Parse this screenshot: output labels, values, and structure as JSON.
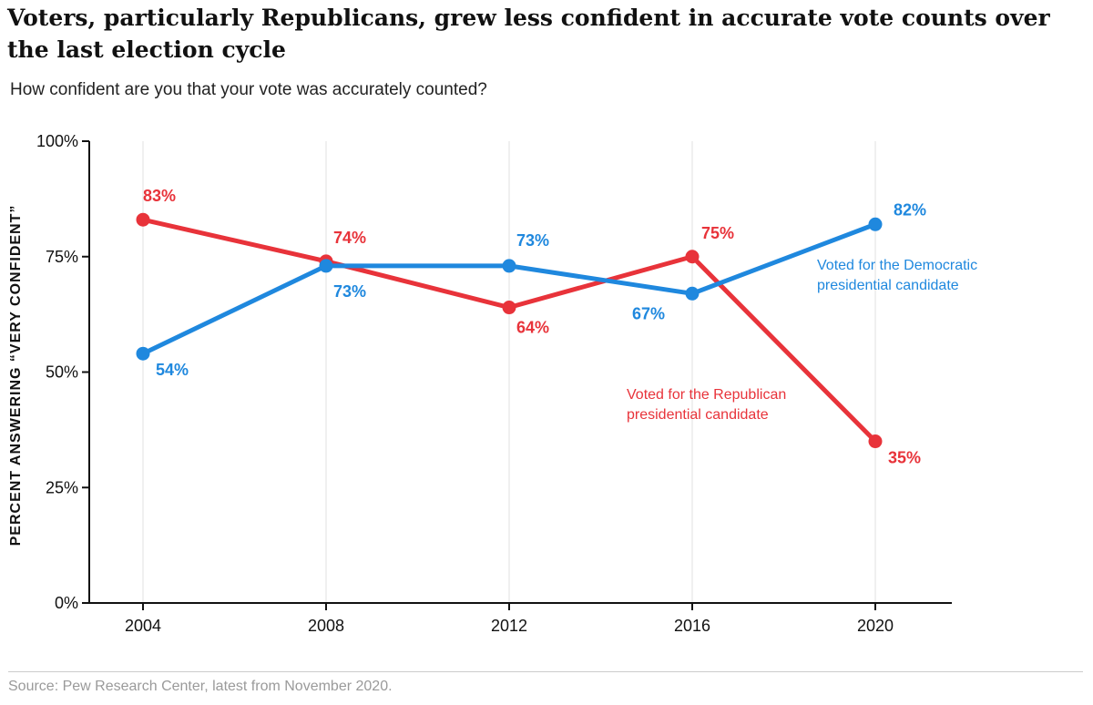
{
  "title": "Voters, particularly Republicans, grew less confident in accurate vote counts over the last election cycle",
  "subtitle": "How confident are you that your vote was accurately counted?",
  "source": "Source: Pew Research Center, latest from November 2020.",
  "chart_data": {
    "type": "line",
    "x": [
      "2004",
      "2008",
      "2012",
      "2016",
      "2020"
    ],
    "ylabel": "PERCENT ANSWERING “VERY CONFIDENT”",
    "ylim": [
      0,
      100
    ],
    "yticks": [
      0,
      25,
      50,
      75,
      100
    ],
    "ytick_labels": [
      "0%",
      "25%",
      "50%",
      "75%",
      "100%"
    ],
    "grid": "vertical",
    "series": [
      {
        "name": "Voted for the Republican presidential candidate",
        "name_lines": [
          "Voted for the Republican",
          "presidential candidate"
        ],
        "color": "#e8333a",
        "values": [
          83,
          74,
          64,
          75,
          35
        ],
        "labels": [
          "83%",
          "74%",
          "64%",
          "75%",
          "35%"
        ]
      },
      {
        "name": "Voted for the Democratic presidential candidate",
        "name_lines": [
          "Voted for the Democratic",
          "presidential candidate"
        ],
        "color": "#1f88de",
        "values": [
          54,
          73,
          73,
          67,
          82
        ],
        "labels": [
          "54%",
          "73%",
          "73%",
          "67%",
          "82%"
        ]
      }
    ]
  }
}
